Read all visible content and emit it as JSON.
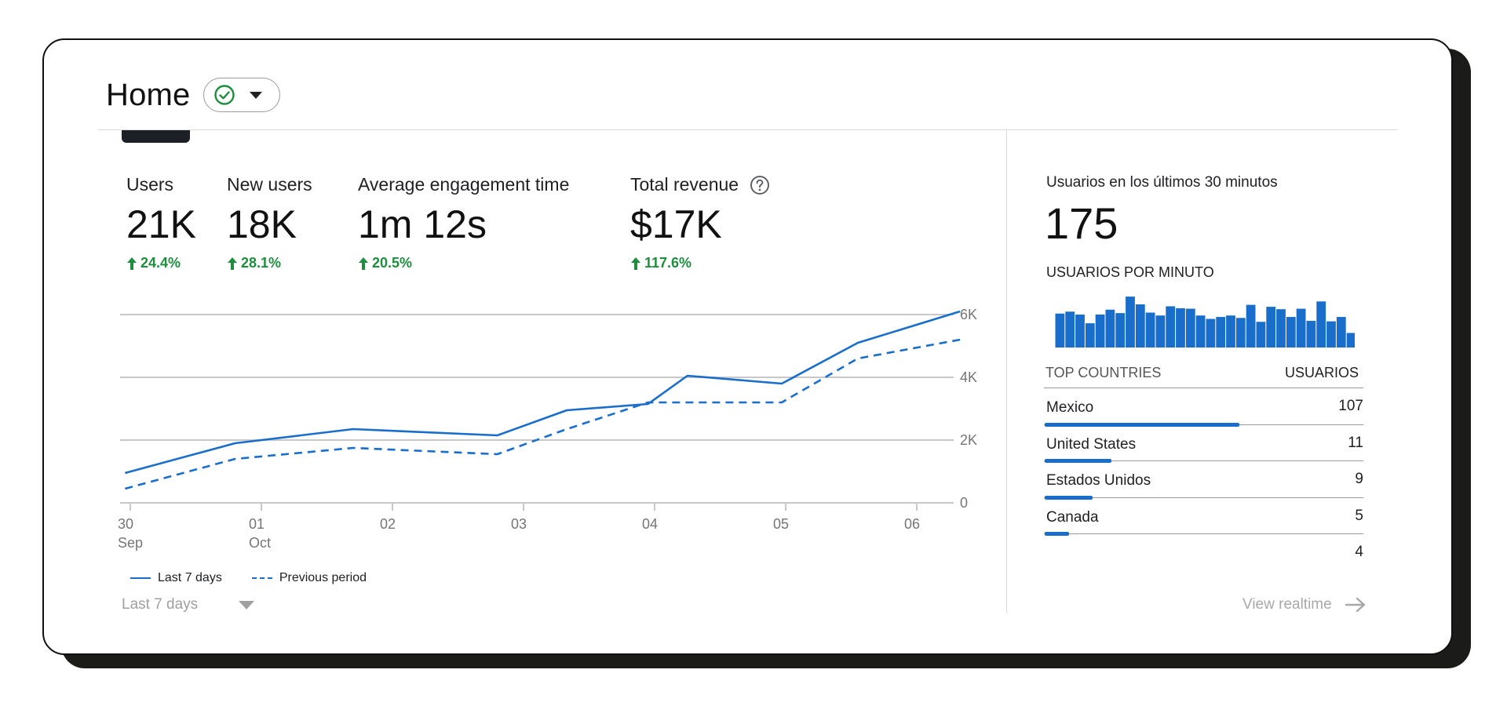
{
  "header": {
    "title": "Home"
  },
  "metrics": [
    {
      "label": "Users",
      "value": "21K",
      "delta": "24.4%"
    },
    {
      "label": "New users",
      "value": "18K",
      "delta": "28.1%"
    },
    {
      "label": "Average engagement time",
      "value": "1m 12s",
      "delta": "20.5%"
    },
    {
      "label": "Total revenue",
      "value": "$17K",
      "delta": "117.6%"
    }
  ],
  "colors": {
    "accent": "#1a6ecb",
    "positive": "#1e8e3e"
  },
  "chart_data": {
    "type": "line",
    "x": [
      "30 Sep",
      "01 Oct",
      "02",
      "03",
      "04",
      "05",
      "06"
    ],
    "x_ticks": [
      {
        "top": "30",
        "bottom": "Sep"
      },
      {
        "top": "01",
        "bottom": "Oct"
      },
      {
        "top": "02",
        "bottom": ""
      },
      {
        "top": "03",
        "bottom": ""
      },
      {
        "top": "04",
        "bottom": ""
      },
      {
        "top": "05",
        "bottom": ""
      },
      {
        "top": "06",
        "bottom": ""
      }
    ],
    "y_ticks": [
      "0",
      "2K",
      "4K",
      "6K"
    ],
    "ylim": [
      0,
      6000
    ],
    "grid": true,
    "series": [
      {
        "name": "Last 7 days",
        "style": "solid",
        "points": [
          [
            -0.04,
            950
          ],
          [
            0.8,
            1900
          ],
          [
            1.7,
            2350
          ],
          [
            2.8,
            2150
          ],
          [
            3.33,
            2950
          ],
          [
            3.95,
            3150
          ],
          [
            4.25,
            4050
          ],
          [
            4.97,
            3800
          ],
          [
            5.55,
            5100
          ],
          [
            6.33,
            6100
          ]
        ]
      },
      {
        "name": "Previous period",
        "style": "dashed",
        "points": [
          [
            -0.04,
            450
          ],
          [
            0.8,
            1400
          ],
          [
            1.7,
            1750
          ],
          [
            2.8,
            1550
          ],
          [
            3.33,
            2350
          ],
          [
            3.95,
            3200
          ],
          [
            4.97,
            3200
          ],
          [
            5.55,
            4600
          ],
          [
            6.33,
            5200
          ]
        ]
      }
    ]
  },
  "legend": {
    "current": "Last 7 days",
    "previous": "Previous period"
  },
  "range_select": {
    "value": "Last 7 days"
  },
  "realtime": {
    "label": "Usuarios en los últimos 30 minutos",
    "value": "175",
    "per_minute_label": "USUARIOS POR MINUTO",
    "per_minute": [
      7,
      7.4,
      6.8,
      5,
      6.8,
      7.8,
      7.1,
      10.5,
      8.9,
      7.2,
      6.6,
      8.5,
      8.1,
      8,
      6.6,
      5.9,
      6.3,
      6.6,
      6.1,
      8.8,
      5.3,
      8.4,
      7.9,
      6.3,
      8,
      5.5,
      9.5,
      5.4,
      6.3,
      3
    ],
    "countries_header": "TOP COUNTRIES",
    "users_header": "USUARIOS",
    "countries": [
      {
        "name": "Mexico",
        "value": "107",
        "share": 0.61
      },
      {
        "name": "United States",
        "value": "11",
        "share": 0.21
      },
      {
        "name": "Estados Unidos",
        "value": "9",
        "share": 0.15
      },
      {
        "name": "Canada",
        "value": "5",
        "share": 0.075
      },
      {
        "name": "",
        "value": "4",
        "share": 0
      }
    ],
    "view_link": "View realtime"
  }
}
